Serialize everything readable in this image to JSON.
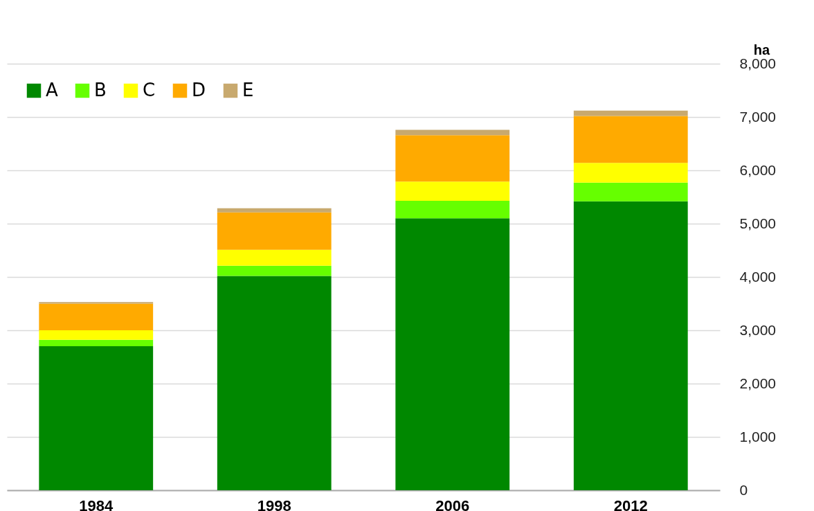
{
  "chart_data": {
    "type": "bar",
    "stacked": true,
    "ylabel": "ha",
    "categories": [
      "1984",
      "1998",
      "2006",
      "2012"
    ],
    "series": [
      {
        "name": "A",
        "color": "#008800",
        "values": [
          2700,
          4020,
          5100,
          5420
        ]
      },
      {
        "name": "B",
        "color": "#66ff00",
        "values": [
          120,
          190,
          330,
          350
        ]
      },
      {
        "name": "C",
        "color": "#ffff00",
        "values": [
          180,
          300,
          360,
          370
        ]
      },
      {
        "name": "D",
        "color": "#ffaa00",
        "values": [
          500,
          700,
          870,
          880
        ]
      },
      {
        "name": "E",
        "color": "#c8a96e",
        "values": [
          30,
          80,
          100,
          100
        ]
      }
    ],
    "ylim": [
      0,
      8000
    ],
    "yticks": [
      0,
      {
        "value": 1000,
        "label": "1,000"
      },
      {
        "value": 2000,
        "label": "2,000"
      },
      {
        "value": 3000,
        "label": "3,000"
      },
      {
        "value": 4000,
        "label": "4,000"
      },
      {
        "value": 5000,
        "label": "5,000"
      },
      {
        "value": 6000,
        "label": "6,000"
      },
      {
        "value": 7000,
        "label": "7,000"
      },
      {
        "value": 8000,
        "label": "8,000"
      }
    ],
    "grid": "y",
    "legend": "top left"
  }
}
